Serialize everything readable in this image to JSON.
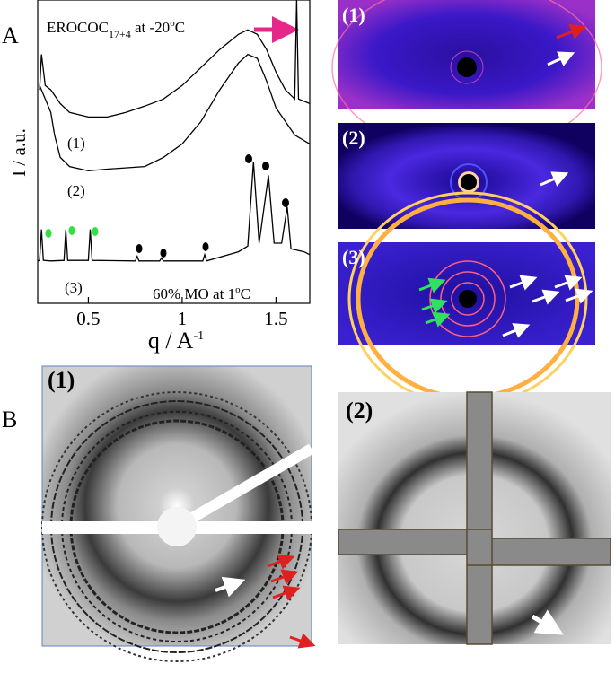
{
  "panel_a_label": "A",
  "panel_b_label": "B",
  "chart_data": {
    "type": "line",
    "annotation_1": {
      "main": "EROCOC",
      "sub": "17+4",
      "rest": " at -20",
      "sup": "o",
      "end": "C"
    },
    "annotation_2": {
      "main": "60% MO at 1",
      "sup": "o",
      "end": "C"
    },
    "xlabel": {
      "main": "q / A",
      "sup": "-1"
    },
    "ylabel": "I / a.u.",
    "xlim": [
      0.23,
      1.68
    ],
    "xticks": [
      0.5,
      1,
      1.5
    ],
    "ylim": [
      -6,
      100
    ],
    "series": [
      {
        "name": "(1)",
        "color": "#000000",
        "x": [
          0.24,
          0.25,
          0.27,
          0.3,
          0.35,
          0.4,
          0.5,
          0.6,
          0.7,
          0.8,
          0.9,
          1.0,
          1.1,
          1.2,
          1.3,
          1.35,
          1.4,
          1.45,
          1.5,
          1.55,
          1.6,
          1.61,
          1.62,
          1.68
        ],
        "values": [
          68.6,
          81,
          70.1,
          68.6,
          63.8,
          60.7,
          59.1,
          59.1,
          60.7,
          62.9,
          65.4,
          70.1,
          76.4,
          82.7,
          88,
          89.6,
          88,
          82.7,
          74.8,
          68.6,
          65.4,
          100,
          65.4,
          63.8
        ]
      },
      {
        "name": "(2)",
        "color": "#000000",
        "x": [
          0.24,
          0.27,
          0.3,
          0.32,
          0.35,
          0.4,
          0.5,
          0.6,
          0.8,
          0.9,
          1.0,
          1.1,
          1.2,
          1.3,
          1.35,
          1.4,
          1.45,
          1.5,
          1.6,
          1.68
        ],
        "values": [
          70.1,
          65.4,
          60.7,
          52.8,
          45,
          41.8,
          40.3,
          40.9,
          41.8,
          45,
          49.7,
          57.5,
          68.6,
          78,
          81,
          79.6,
          71.7,
          62.3,
          52.8,
          49.7
        ]
      },
      {
        "name": "(3)",
        "color": "#000000",
        "x": [
          0.23,
          0.24,
          0.25,
          0.26,
          0.3,
          0.37,
          0.38,
          0.39,
          0.5,
          0.51,
          0.52,
          0.75,
          0.76,
          0.77,
          0.88,
          0.89,
          0.9,
          1.11,
          1.12,
          1.13,
          1.3,
          1.35,
          1.38,
          1.41,
          1.46,
          1.49,
          1.53,
          1.56,
          1.58,
          1.65,
          1.68
        ],
        "values": [
          8.8,
          9,
          19.8,
          9,
          8.8,
          9,
          19.8,
          9,
          9,
          19.8,
          9,
          8.8,
          10.4,
          8.8,
          8.8,
          9.8,
          8.8,
          8.8,
          11,
          8.8,
          12,
          14,
          43.4,
          15,
          38.7,
          15,
          15,
          27.7,
          13,
          12,
          11
        ]
      }
    ]
  },
  "images_a": [
    "(1)",
    "(2)",
    "(3)"
  ],
  "images_b": [
    "(1)",
    "(2)"
  ]
}
